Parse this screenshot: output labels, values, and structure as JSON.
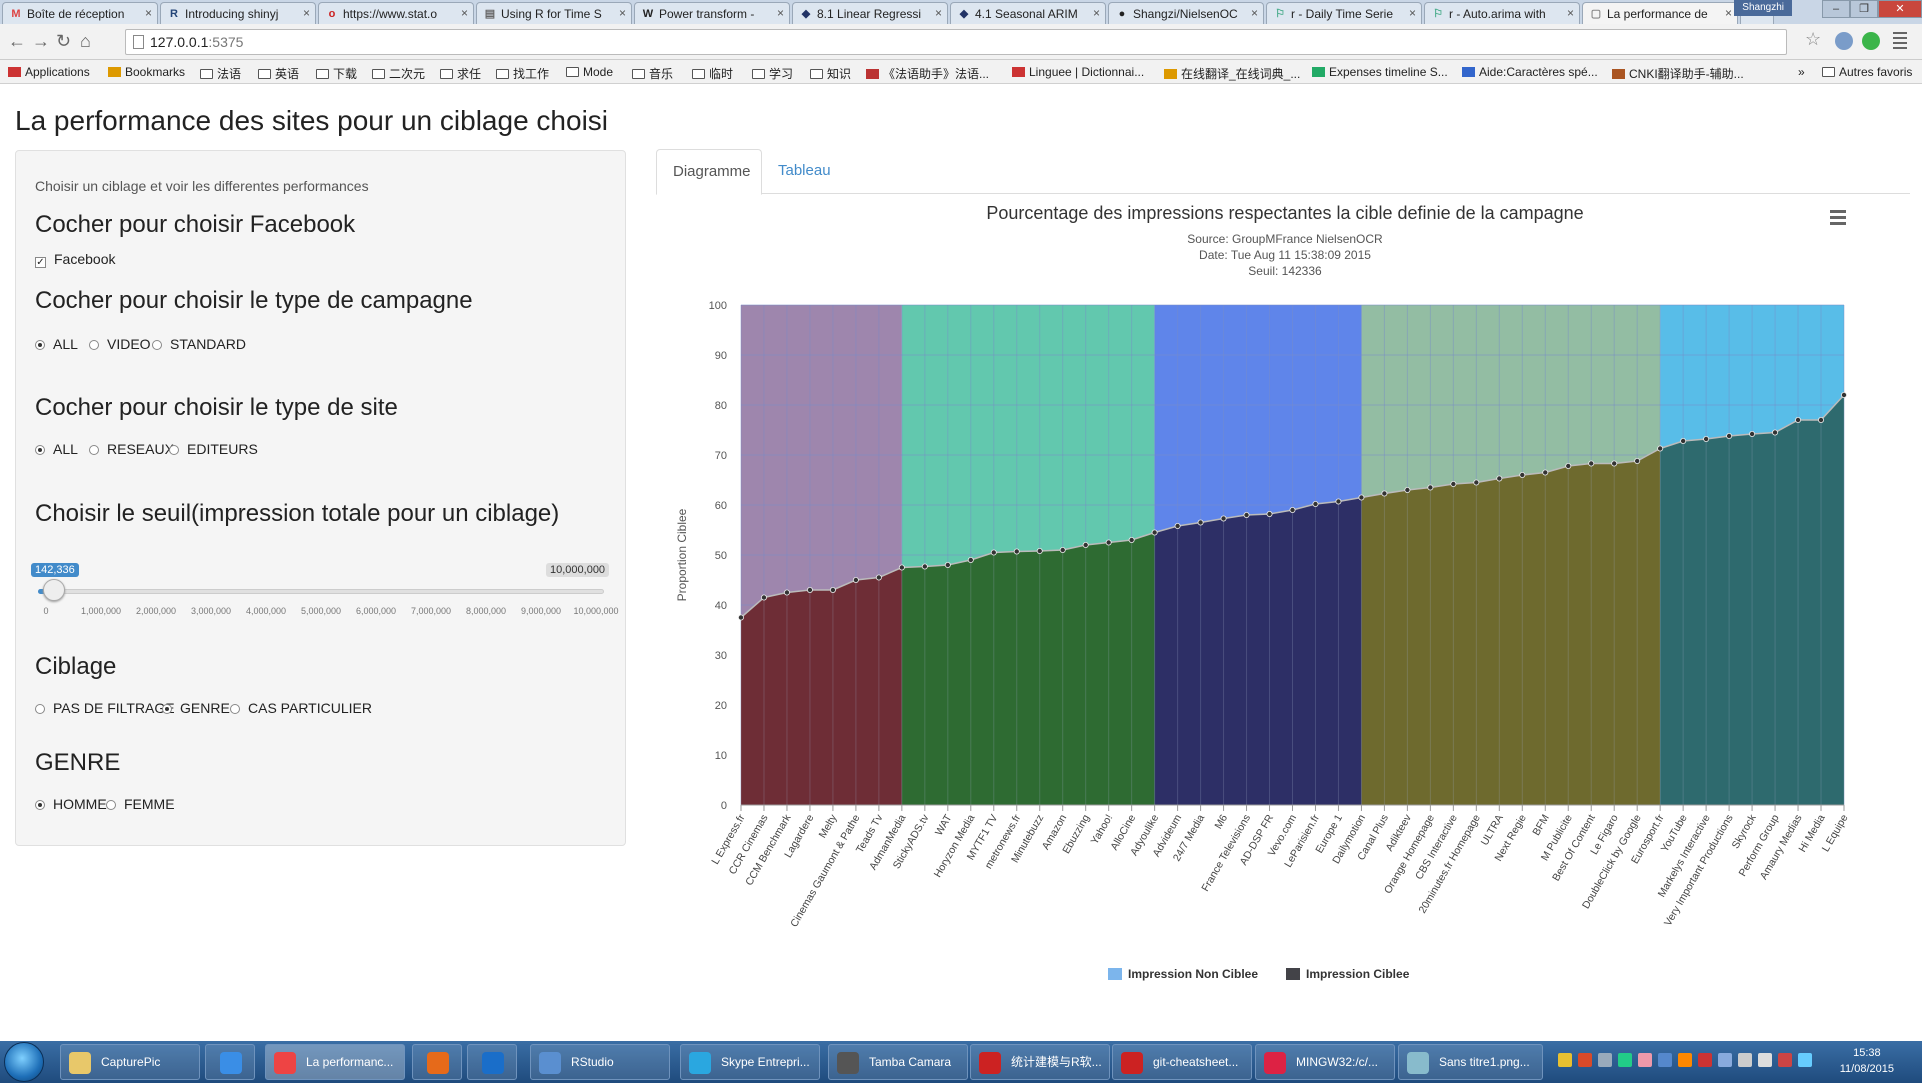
{
  "browser": {
    "tabs": [
      {
        "label": "Boîte de réception",
        "favicon": "M",
        "color": "#d44"
      },
      {
        "label": "Introducing shinyj",
        "favicon": "R",
        "color": "#247"
      },
      {
        "label": "https://www.stat.o",
        "favicon": "o",
        "color": "#c22"
      },
      {
        "label": "Using R for Time S",
        "favicon": "▤",
        "color": "#666"
      },
      {
        "label": "Power transform -",
        "favicon": "W",
        "color": "#222"
      },
      {
        "label": "8.1 Linear Regressi",
        "favicon": "◆",
        "color": "#236"
      },
      {
        "label": "4.1 Seasonal ARIM",
        "favicon": "◆",
        "color": "#236"
      },
      {
        "label": "Shangzi/NielsenOC",
        "favicon": "●",
        "color": "#222"
      },
      {
        "label": "r - Daily Time Serie",
        "favicon": "⚐",
        "color": "#4a8"
      },
      {
        "label": "r - Auto.arima with",
        "favicon": "⚐",
        "color": "#4a8"
      },
      {
        "label": "La performance de",
        "favicon": "▢",
        "color": "#888"
      }
    ],
    "user": "Shangzhi",
    "url_host": "127.0.0.1",
    "url_port": ":5375",
    "bookmarks": [
      "Applications",
      "Bookmarks",
      "法语",
      "英语",
      "下载",
      "二次元",
      "求任",
      "找工作",
      "Mode",
      "音乐",
      "临时",
      "学习",
      "知识",
      "《法语助手》法语...",
      "Linguee | Dictionnai...",
      "在线翻译_在线词典_...",
      "Expenses timeline S...",
      "Aide:Caractères spé...",
      "CNKI翻译助手-辅助...",
      "»",
      "Autres favoris"
    ]
  },
  "app": {
    "title": "La performance des sites pour un ciblage choisi",
    "help_text": "Choisir un ciblage et voir les differentes performances",
    "facebook_heading": "Cocher pour choisir Facebook",
    "facebook_label": "Facebook",
    "facebook_checked": true,
    "campaign_heading": "Cocher pour choisir le type de campagne",
    "campaign_options": [
      "ALL",
      "VIDEO",
      "STANDARD"
    ],
    "campaign_selected": "ALL",
    "site_heading": "Cocher pour choisir le type de site",
    "site_options": [
      "ALL",
      "RESEAUX",
      "EDITEURS"
    ],
    "site_selected": "ALL",
    "threshold_heading": "Choisir le seuil(impression totale pour un ciblage)",
    "slider_value_label": "142,336",
    "slider_max_label": "10,000,000",
    "slider_value": 142336,
    "slider_min": 0,
    "slider_max": 10000000,
    "slider_ticks": [
      "0",
      "1,000,000",
      "2,000,000",
      "3,000,000",
      "4,000,000",
      "5,000,000",
      "6,000,000",
      "7,000,000",
      "8,000,000",
      "9,000,000",
      "10,000,000"
    ],
    "ciblage_heading": "Ciblage",
    "ciblage_options": [
      "PAS DE FILTRAGE",
      "GENRE",
      "CAS PARTICULIER"
    ],
    "ciblage_selected": "GENRE",
    "genre_heading": "GENRE",
    "genre_options": [
      "HOMME",
      "FEMME"
    ],
    "genre_selected": "HOMME",
    "tab_diagram": "Diagramme",
    "tab_table": "Tableau"
  },
  "chart_data": {
    "type": "area",
    "title": "Pourcentage des impressions respectantes la cible definie de la campagne",
    "subtitle_lines": [
      "Source: GroupMFrance NielsenOCR",
      "Date: Tue Aug 11 15:38:09 2015",
      "Seuil: 142336"
    ],
    "ylabel": "Proportion Ciblee",
    "ylim": [
      0,
      100
    ],
    "yticks": [
      0,
      10,
      20,
      30,
      40,
      50,
      60,
      70,
      80,
      90,
      100
    ],
    "legend_position": "bottom-center",
    "grid": true,
    "categories": [
      "L Express.fr",
      "CCR Cinemas",
      "CCM Benchmark",
      "Lagardere",
      "Melty",
      "Cinemas Gaumont & Pathe",
      "Teads Tv",
      "AdmanMedia",
      "StickyADS.tv",
      "WAT",
      "Horyzon Media",
      "MYTF1 TV",
      "metronews.fr",
      "Minutebuzz",
      "Amazon",
      "Ebuzzing",
      "Yahoo!",
      "AlloCine",
      "Adyoulike",
      "Advideum",
      "24/7 Media",
      "M6",
      "France Televisions",
      "AD-DSP FR",
      "Vevo.com",
      "LeParisien.fr",
      "Europe 1",
      "Dailymotion",
      "Canal Plus",
      "Adikteev",
      "Orange Homepage",
      "CBS Interactive",
      "20minutes.fr Homepage",
      "ULTRA",
      "Next Regie",
      "BFM",
      "M Publicite",
      "Best Of Content",
      "Le Figaro",
      "DoubleClick by Google",
      "Eurosport.fr",
      "YouTube",
      "Markelys Interactive",
      "Very Important Productions",
      "Skyrock",
      "Perform Group",
      "Amaury Medias",
      "Hi Media",
      "L Equipe"
    ],
    "values": [
      37.5,
      41.5,
      42.5,
      43,
      43,
      45,
      45.5,
      47.5,
      47.7,
      48,
      49,
      50.5,
      50.7,
      50.8,
      51,
      52,
      52.5,
      53,
      54.5,
      55.8,
      56.5,
      57.3,
      58,
      58.2,
      59,
      60.2,
      60.7,
      61.5,
      62.3,
      63,
      63.5,
      64.2,
      64.5,
      65.3,
      66,
      66.5,
      67.8,
      68.3,
      68.3,
      68.8,
      71.3,
      72.8,
      73.2,
      73.8,
      74.2,
      74.5,
      77,
      77,
      82
    ],
    "bands": [
      {
        "from": 0,
        "to": 7,
        "top_color": "#9e86ad",
        "bottom_color": "#6e2d36"
      },
      {
        "from": 7,
        "to": 18,
        "top_color": "#62c8ae",
        "bottom_color": "#2e6b32"
      },
      {
        "from": 18,
        "to": 27,
        "top_color": "#5f85ea",
        "bottom_color": "#2d2f66"
      },
      {
        "from": 27,
        "to": 40,
        "top_color": "#93bda3",
        "bottom_color": "#6e6a2e"
      },
      {
        "from": 40,
        "to": 48,
        "top_color": "#58bde8",
        "bottom_color": "#2e6a6e"
      }
    ],
    "series": [
      {
        "name": "Impression Non Ciblee",
        "color": "#7cb5ec"
      },
      {
        "name": "Impression Ciblee",
        "color": "#434348"
      }
    ]
  },
  "taskbar": {
    "items": [
      {
        "label": "CapturePic",
        "icon_color": "#e8c86a"
      },
      {
        "label": "",
        "icon_color": "#3a8ee6"
      },
      {
        "label": "La performanc...",
        "icon_color": "#e44",
        "active": true
      },
      {
        "label": "",
        "icon_color": "#e66a1a"
      },
      {
        "label": "",
        "icon_color": "#1a6ec9"
      },
      {
        "label": "RStudio",
        "icon_color": "#5a8fd0"
      },
      {
        "label": "Skype Entrepri...",
        "icon_color": "#2aa7e0"
      },
      {
        "label": "Tamba Camara",
        "icon_color": "#555"
      },
      {
        "label": "统计建模与R软...",
        "icon_color": "#c22"
      },
      {
        "label": "git-cheatsheet...",
        "icon_color": "#c22"
      },
      {
        "label": "MINGW32:/c/...",
        "icon_color": "#d24"
      },
      {
        "label": "Sans titre1.png...",
        "icon_color": "#8bc"
      }
    ],
    "time": "15:38",
    "date": "11/08/2015"
  }
}
